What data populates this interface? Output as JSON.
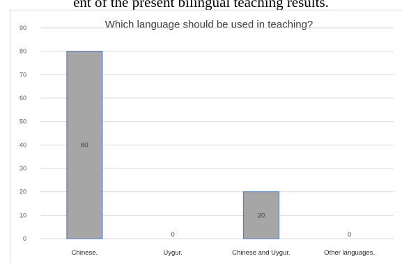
{
  "document": {
    "partial_text": "ent of the present bilingual teaching results."
  },
  "chart_data": {
    "type": "bar",
    "title": "Which language should be used in teaching?",
    "categories": [
      "Chinese.",
      "Uygur.",
      "Chinese and Uygur.",
      "Other languages."
    ],
    "values": [
      80,
      0,
      20,
      0
    ],
    "data_labels": [
      "80",
      "0",
      "20",
      "0"
    ],
    "yticks": [
      "0",
      "10",
      "20",
      "30",
      "40",
      "50",
      "60",
      "70",
      "80",
      "90"
    ],
    "ylim": [
      0,
      90
    ],
    "xlabel": "",
    "ylabel": "",
    "grid": true,
    "legend": "none",
    "colors": {
      "bar_fill": "#a6a6a6",
      "bar_border": "#4472c4",
      "grid": "#d9d9d9"
    }
  }
}
